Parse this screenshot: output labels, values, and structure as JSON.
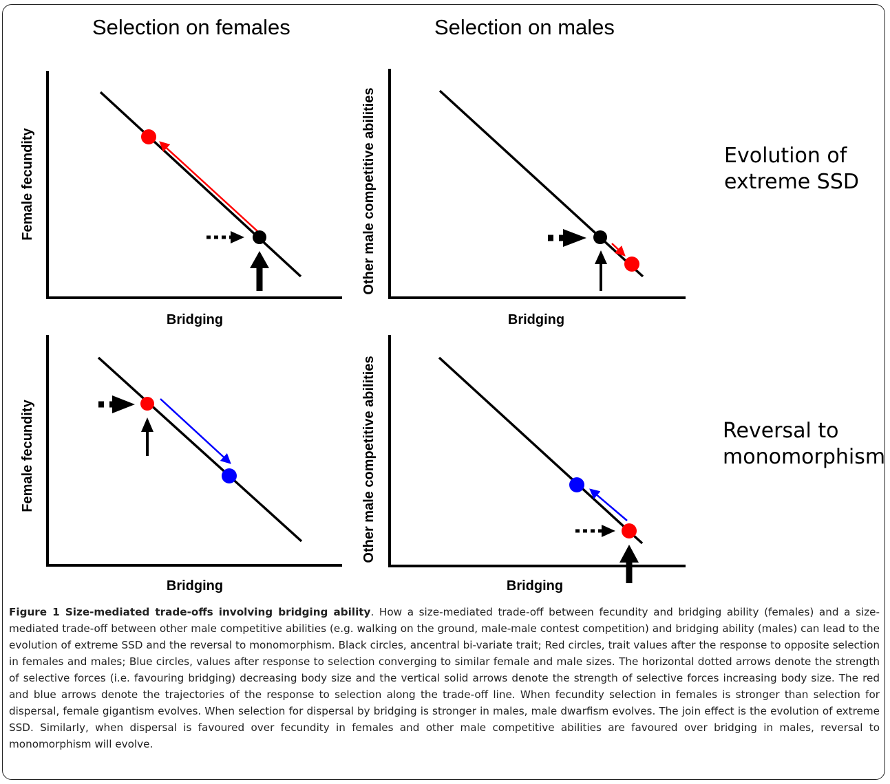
{
  "header": {
    "left_title": "Selection on females",
    "right_title": "Selection on males"
  },
  "row_titles": {
    "top": [
      "Evolution of",
      "extreme SSD"
    ],
    "bottom": [
      "Reversal to",
      "monomorphism"
    ]
  },
  "panels": {
    "top_left": {
      "ylabel": "Female fecundity",
      "xlabel": "Bridging"
    },
    "top_right": {
      "ylabel": "Other male competitive abilities",
      "xlabel": "Bridging"
    },
    "bottom_left": {
      "ylabel": "Female fecundity",
      "xlabel": "Bridging"
    },
    "bottom_right": {
      "ylabel": "Other male competitive abilities",
      "xlabel": "Bridging"
    }
  },
  "colors": {
    "ancestral": "#000000",
    "opposite_selection": "#ff0000",
    "converging": "#0000ff"
  },
  "caption": {
    "label": "Figure 1 Size-mediated trade-offs involving bridging ability",
    "text": ". How a size-mediated trade-off between fecundity and bridging ability (females) and a size-mediated trade-off between other male competitive abilities (e.g. walking on the ground, male-male contest competition) and bridging ability (males) can lead to the evolution of extreme SSD and the reversal to monomorphism. Black circles, ancentral bi-variate trait; Red circles, trait values after the response to opposite selection in females and males; Blue circles, values after response to selection converging to similar female and male sizes. The horizontal dotted arrows denote the strength of selective forces (i.e. favouring bridging) decreasing body size and the vertical solid arrows denote the strength of selective forces increasing body size. The red and blue arrows denote the trajectories of the response to selection along the trade-off line. When fecundity selection in females is stronger than selection for dispersal, female gigantism evolves. When selection for dispersal by bridging is stronger in males, male dwarfism evolves. The join effect is the evolution of extreme SSD. Similarly, when dispersal is favoured over fecundity in females and other male competitive abilities are favoured over bridging in males, reversal to monomorphism will evolve."
  }
}
